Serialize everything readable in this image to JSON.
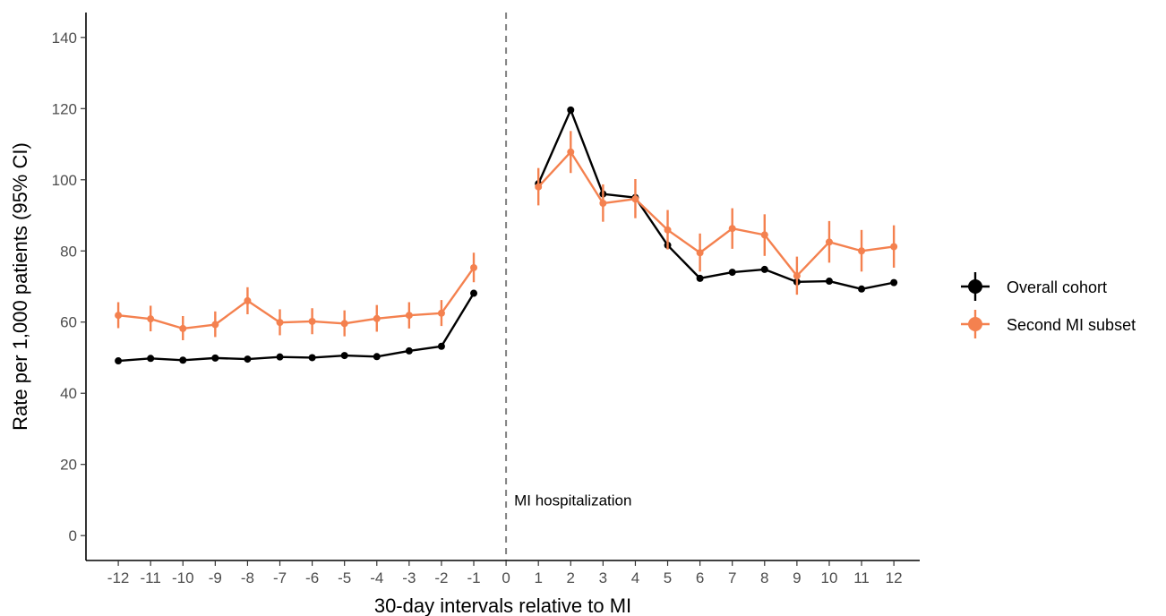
{
  "chart_data": {
    "type": "line",
    "xlabel": "30-day intervals relative to MI",
    "ylabel": "Rate per 1,000 patients (95% CI)",
    "x_ticks": [
      -12,
      -11,
      -10,
      -9,
      -8,
      -7,
      -6,
      -5,
      -4,
      -3,
      -2,
      -1,
      0,
      1,
      2,
      3,
      4,
      5,
      6,
      7,
      8,
      9,
      10,
      11,
      12
    ],
    "xlim": [
      -13,
      12.8
    ],
    "y_ticks": [
      0,
      20,
      40,
      60,
      80,
      100,
      120,
      140
    ],
    "ylim": [
      -7,
      147
    ],
    "grid": false,
    "legend_position": "right",
    "annotation": {
      "text": "MI hospitalization",
      "x": 0,
      "y": 10
    },
    "reference_line": {
      "x": 0,
      "style": "dashed",
      "color": "#808080"
    },
    "series": [
      {
        "name": "Overall cohort",
        "color": "#000000",
        "x": [
          -12,
          -11,
          -10,
          -9,
          -8,
          -7,
          -6,
          -5,
          -4,
          -3,
          -2,
          -1,
          1,
          2,
          3,
          4,
          5,
          6,
          7,
          8,
          9,
          10,
          11,
          12
        ],
        "y": [
          49.1,
          49.8,
          49.3,
          49.9,
          49.6,
          50.2,
          50.0,
          50.6,
          50.3,
          51.9,
          53.2,
          68.1,
          98.9,
          119.6,
          96.0,
          95.0,
          81.6,
          72.3,
          74.0,
          74.8,
          71.3,
          71.5,
          69.3,
          71.1
        ]
      },
      {
        "name": "Second MI subset",
        "color": "#F4814F",
        "x": [
          -12,
          -11,
          -10,
          -9,
          -8,
          -7,
          -6,
          -5,
          -4,
          -3,
          -2,
          -1,
          1,
          2,
          3,
          4,
          5,
          6,
          7,
          8,
          9,
          10,
          11,
          12
        ],
        "y": [
          61.9,
          60.9,
          58.2,
          59.3,
          66.0,
          59.9,
          60.2,
          59.6,
          61.0,
          61.9,
          62.5,
          75.3,
          98.0,
          107.8,
          93.4,
          94.6,
          85.9,
          79.5,
          86.3,
          84.5,
          73.0,
          82.5,
          80.0,
          81.2
        ],
        "ci_low": [
          58.3,
          57.4,
          54.9,
          55.8,
          62.2,
          56.3,
          56.6,
          56.0,
          57.3,
          58.2,
          58.9,
          71.2,
          92.8,
          101.9,
          88.2,
          89.2,
          80.4,
          74.2,
          80.6,
          78.6,
          67.7,
          76.7,
          74.2,
          75.3
        ],
        "ci_high": [
          65.6,
          64.6,
          61.7,
          63.0,
          69.8,
          63.6,
          63.9,
          63.3,
          64.8,
          65.6,
          66.2,
          79.5,
          103.3,
          113.7,
          98.7,
          100.2,
          91.5,
          84.9,
          92.0,
          90.3,
          78.4,
          88.4,
          85.9,
          87.2
        ]
      }
    ]
  }
}
